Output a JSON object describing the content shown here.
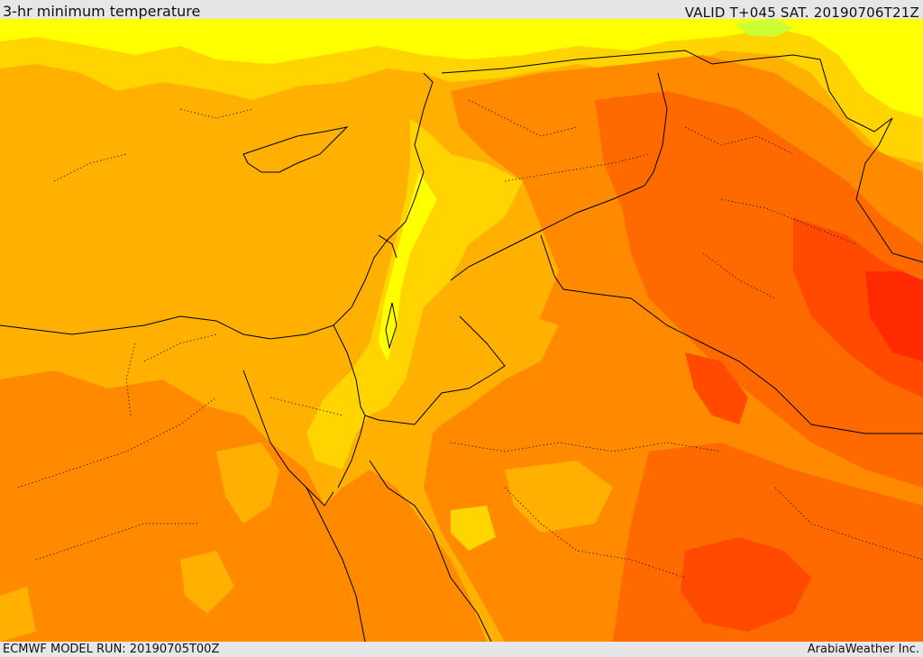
{
  "header": {
    "title": "3-hr minimum temperature",
    "valid": "VALID T+045 SAT. 20190706T21Z"
  },
  "footer": {
    "model_run": "ECMWF MODEL RUN: 20190705T00Z",
    "credit": "ArabiaWeather Inc."
  },
  "map": {
    "palette": {
      "sea": "#ffb000",
      "warm": "#ffb000",
      "warmer": "#ff8a00",
      "hot": "#ff6a00",
      "very_hot": "#ff4a00",
      "extreme": "#ff2a00",
      "cool": "#ffd400",
      "cooler": "#ffff00",
      "coolest": "#ccff33",
      "border": "#000000"
    }
  }
}
